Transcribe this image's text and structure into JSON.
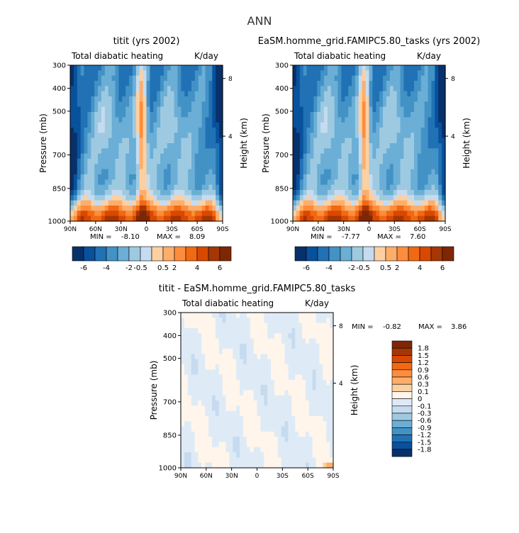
{
  "page_title": "ANN",
  "colors": {
    "ramp_top": [
      "#08306b",
      "#08519c",
      "#2171b5",
      "#4292c6",
      "#6baed6",
      "#9ecae1",
      "#c6dbef",
      "#fdd0a2",
      "#fdae6b",
      "#fd8d3c",
      "#f16913",
      "#d94801",
      "#a63603",
      "#7f2704"
    ],
    "ramp_diff": [
      "#08306b",
      "#08519c",
      "#2171b5",
      "#4292c6",
      "#6baed6",
      "#9ecae1",
      "#c6dbef",
      "#deebf7",
      "#fff5eb",
      "#fdd0a2",
      "#fdae6b",
      "#fd8d3c",
      "#f16913",
      "#d94801",
      "#a63603",
      "#7f2704"
    ]
  },
  "chart_data": [
    {
      "type": "heatmap",
      "title": "titit (yrs 2002)",
      "subtitle_left": "Total diabatic heating",
      "subtitle_right": "K/day",
      "ylabel": "Pressure (mb)",
      "ylabel_right": "Height (km)",
      "x_ticks": [
        "90N",
        "60N",
        "30N",
        "0",
        "30S",
        "60S",
        "90S"
      ],
      "y_ticks": [
        "300",
        "400",
        "500",
        "700",
        "850",
        "1000"
      ],
      "y_ticks_right": [
        "8",
        "4"
      ],
      "stats": {
        "min_label": "MIN =",
        "min": "-8.10",
        "max_label": "MAX =",
        "max": "8.09"
      },
      "colorbar_labels": [
        "-6",
        "-4",
        "-2",
        "-0.5",
        "0.5",
        "2",
        "4",
        "6"
      ]
    },
    {
      "type": "heatmap",
      "title": "EaSM.homme_grid.FAMIPC5.80_tasks (yrs 2002)",
      "subtitle_left": "Total diabatic heating",
      "subtitle_right": "K/day",
      "ylabel": "Pressure (mb)",
      "ylabel_right": "Height (km)",
      "x_ticks": [
        "90N",
        "60N",
        "30N",
        "0",
        "30S",
        "60S",
        "90S"
      ],
      "y_ticks": [
        "300",
        "400",
        "500",
        "700",
        "850",
        "1000"
      ],
      "y_ticks_right": [
        "8",
        "4"
      ],
      "stats": {
        "min_label": "MIN =",
        "min": "-7.77",
        "max_label": "MAX =",
        "max": "7.60"
      },
      "colorbar_labels": [
        "-6",
        "-4",
        "-2",
        "-0.5",
        "0.5",
        "2",
        "4",
        "6"
      ]
    },
    {
      "type": "heatmap",
      "title": "titit - EaSM.homme_grid.FAMIPC5.80_tasks",
      "subtitle_left": "Total diabatic heating",
      "subtitle_right": "K/day",
      "ylabel": "Pressure (mb)",
      "ylabel_right": "Height (km)",
      "x_ticks": [
        "90N",
        "60N",
        "30N",
        "0",
        "30S",
        "60S",
        "90S"
      ],
      "y_ticks": [
        "300",
        "400",
        "500",
        "700",
        "850",
        "1000"
      ],
      "y_ticks_right": [
        "8",
        "4"
      ],
      "stats": {
        "min_label": "MIN =",
        "min": "-0.82",
        "max_label": "MAX =",
        "max": "3.86"
      },
      "colorbar_labels": [
        "1.8",
        "1.5",
        "1.2",
        "0.9",
        "0.6",
        "0.3",
        "0.1",
        "0",
        "-0.1",
        "-0.3",
        "-0.6",
        "-0.9",
        "-1.2",
        "-1.5",
        "-1.8"
      ]
    }
  ]
}
